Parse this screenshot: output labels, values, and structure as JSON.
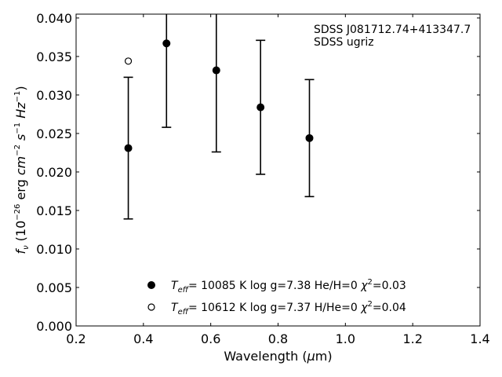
{
  "chart_data": {
    "type": "scatter",
    "title": "",
    "xlabel": {
      "text": "Wavelength (",
      "mu": "μ",
      "unit": "m)"
    },
    "ylabel": {
      "f": "f",
      "nu": "ν",
      "open": " (10",
      "exp1": "−26",
      "erg": " erg ",
      "cm": "cm",
      "exp2": "−2",
      "s": " s",
      "exp3": "−1",
      "hz": " Hz",
      "exp4": "−1",
      "close": ")"
    },
    "xlim": [
      0.2,
      1.4
    ],
    "ylim": [
      0.0,
      0.0405
    ],
    "xticks": [
      "0.2",
      "0.4",
      "0.6",
      "0.8",
      "1.0",
      "1.2",
      "1.4"
    ],
    "yticks": [
      "0.000",
      "0.005",
      "0.010",
      "0.015",
      "0.020",
      "0.025",
      "0.030",
      "0.035",
      "0.040"
    ],
    "grid": false,
    "annotation": {
      "line1": "SDSS J081712.74+413347.7",
      "line2": "SDSS ugriz",
      "placement": "top-right"
    },
    "series": [
      {
        "marker": "filled-circle",
        "color": "#000000",
        "x": [
          0.3551,
          0.4686,
          0.6166,
          0.748,
          0.8932
        ],
        "y": [
          0.0231,
          0.0367,
          0.0332,
          0.0284,
          0.0244
        ],
        "yerr": [
          0.0092,
          0.0109,
          0.0106,
          0.0087,
          0.0076
        ],
        "legend": {
          "teff": "T",
          "eff": "eff",
          "text1": "= 10085 K  log g=7.38  He/H=0  ",
          "chi": "χ",
          "two": "2",
          "text2": "=0.03"
        }
      },
      {
        "marker": "open-circle",
        "color": "#000000",
        "x": [
          0.3551
        ],
        "y": [
          0.0344
        ],
        "legend": {
          "teff": "T",
          "eff": "eff",
          "text1": "= 10612 K  log g=7.37  H/He=0  ",
          "chi": "χ",
          "two": "2",
          "text2": "=0.04"
        }
      }
    ],
    "legend_placement": "lower-center"
  }
}
